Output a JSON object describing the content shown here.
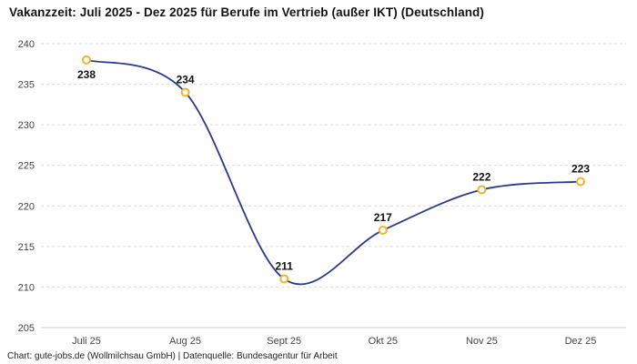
{
  "header": {
    "title": "Vakanzzeit: Juli 2025 - Dez 2025 für Berufe im Vertrieb (außer IKT) (Deutschland)"
  },
  "footer": {
    "credit": "Chart: gute-jobs.de (Wollmilchsau GmbH) | Datenquelle: Bundesagentur für Arbeit"
  },
  "chart_data": {
    "type": "line",
    "title": "Vakanzzeit: Juli 2025 - Dez 2025 für Berufe im Vertrieb (außer IKT) (Deutschland)",
    "categories": [
      "Juli 25",
      "Aug 25",
      "Sept 25",
      "Okt 25",
      "Nov 25",
      "Dez 25"
    ],
    "values": [
      238,
      234,
      211,
      217,
      222,
      223
    ],
    "xlabel": "",
    "ylabel": "",
    "ylim": [
      205,
      240
    ],
    "ytick_step": 5,
    "grid": "dashed-horizontal",
    "legend": "none",
    "line_color": "#2b3990",
    "marker_stroke": "#f0b32e",
    "marker_fill": "#ffffff",
    "grid_color": "#d9d9d9",
    "axis_color": "#cccccc",
    "label_positions": [
      "below",
      "above",
      "above",
      "above",
      "above",
      "above"
    ]
  }
}
